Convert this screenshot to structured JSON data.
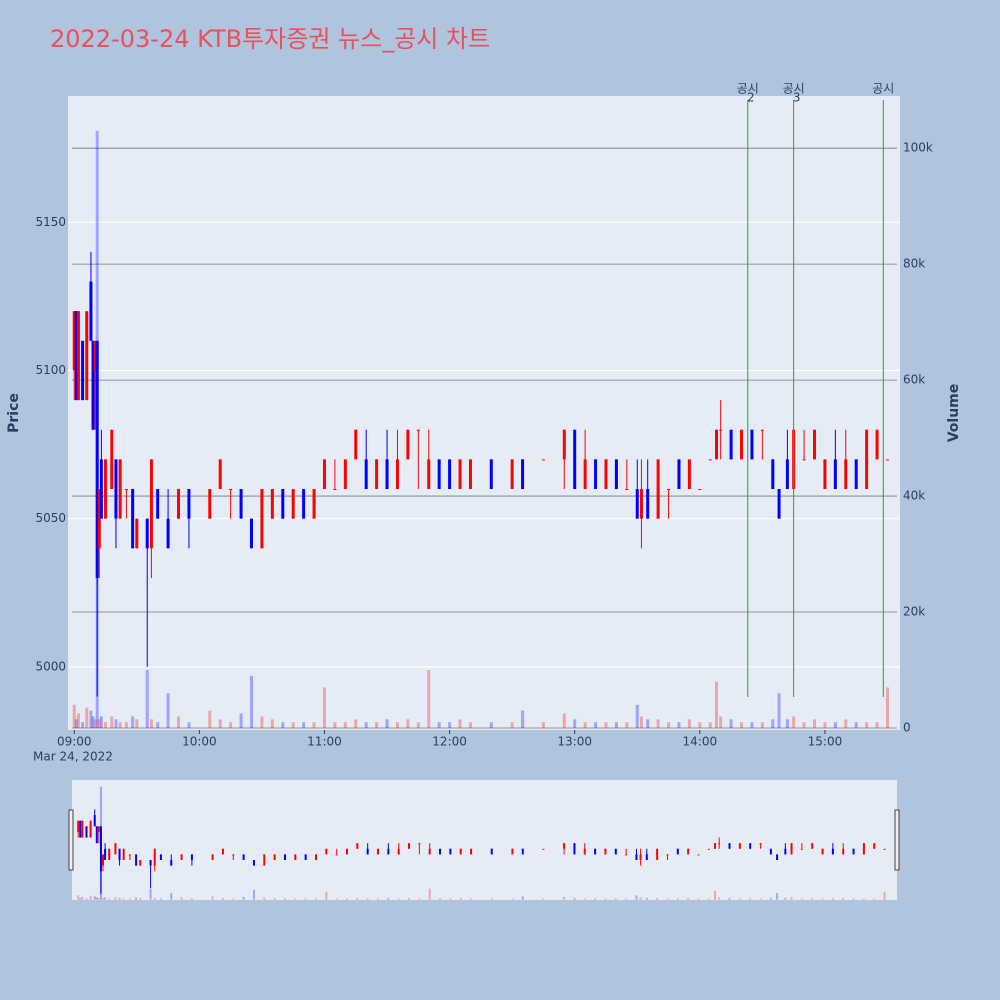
{
  "chart_data": {
    "type": "candlestick",
    "title": "2022-03-24 KTB투자증권 뉴스_공시 차트",
    "y_label": "Price",
    "y2_label": "Volume",
    "x_date_label": "Mar 24, 2022",
    "up_color": "#ff0000",
    "down_color": "#0000ff",
    "annotation_color": "#2ca02c",
    "x": [
      "09:00",
      "09:01",
      "09:02",
      "09:04",
      "09:06",
      "09:08",
      "09:09",
      "09:10",
      "09:11",
      "09:12",
      "09:13",
      "09:15",
      "09:18",
      "09:20",
      "09:22",
      "09:25",
      "09:28",
      "09:30",
      "09:35",
      "09:37",
      "09:40",
      "09:45",
      "09:50",
      "09:55",
      "10:05",
      "10:10",
      "10:15",
      "10:20",
      "10:25",
      "10:30",
      "10:35",
      "10:40",
      "10:45",
      "10:50",
      "10:55",
      "11:00",
      "11:05",
      "11:10",
      "11:15",
      "11:20",
      "11:25",
      "11:30",
      "11:35",
      "11:40",
      "11:45",
      "11:50",
      "11:55",
      "12:00",
      "12:05",
      "12:10",
      "12:20",
      "12:30",
      "12:35",
      "12:45",
      "12:55",
      "13:00",
      "13:05",
      "13:10",
      "13:15",
      "13:20",
      "13:25",
      "13:30",
      "13:32",
      "13:35",
      "13:40",
      "13:45",
      "13:50",
      "13:55",
      "14:00",
      "14:05",
      "14:08",
      "14:10",
      "14:15",
      "14:20",
      "14:25",
      "14:30",
      "14:35",
      "14:38",
      "14:42",
      "14:45",
      "14:50",
      "14:55",
      "15:00",
      "15:05",
      "15:10",
      "15:15",
      "15:20",
      "15:25",
      "15:30"
    ],
    "open": [
      5100,
      5120,
      5090,
      5110,
      5090,
      5130,
      5110,
      5100,
      5110,
      5040,
      5070,
      5050,
      5060,
      5070,
      5050,
      5060,
      5060,
      5040,
      5050,
      5040,
      5060,
      5050,
      5050,
      5060,
      5050,
      5060,
      5060,
      5060,
      5050,
      5040,
      5050,
      5060,
      5050,
      5060,
      5050,
      5060,
      5060,
      5060,
      5070,
      5070,
      5060,
      5070,
      5060,
      5070,
      5080,
      5060,
      5070,
      5070,
      5060,
      5060,
      5070,
      5060,
      5070,
      5070,
      5070,
      5080,
      5060,
      5070,
      5060,
      5070,
      5060,
      5060,
      5050,
      5060,
      5050,
      5060,
      5070,
      5060,
      5060,
      5070,
      5070,
      5080,
      5080,
      5070,
      5080,
      5080,
      5070,
      5060,
      5070,
      5060,
      5070,
      5070,
      5060,
      5070,
      5060,
      5070,
      5060,
      5070,
      5070
    ],
    "high": [
      5120,
      5120,
      5120,
      5110,
      5120,
      5140,
      5110,
      5110,
      5110,
      5060,
      5080,
      5070,
      5080,
      5070,
      5070,
      5060,
      5060,
      5050,
      5050,
      5070,
      5060,
      5060,
      5060,
      5060,
      5060,
      5070,
      5060,
      5060,
      5050,
      5060,
      5060,
      5060,
      5060,
      5060,
      5060,
      5070,
      5070,
      5070,
      5080,
      5080,
      5070,
      5080,
      5080,
      5080,
      5080,
      5080,
      5070,
      5070,
      5070,
      5070,
      5070,
      5070,
      5070,
      5070,
      5080,
      5080,
      5080,
      5070,
      5070,
      5070,
      5070,
      5070,
      5070,
      5070,
      5070,
      5060,
      5070,
      5070,
      5060,
      5070,
      5080,
      5090,
      5080,
      5080,
      5080,
      5080,
      5070,
      5060,
      5080,
      5080,
      5080,
      5080,
      5070,
      5080,
      5080,
      5070,
      5080,
      5080,
      5070
    ],
    "low": [
      5090,
      5090,
      5090,
      5090,
      5090,
      5110,
      5080,
      5080,
      4990,
      5030,
      5050,
      5050,
      5060,
      5040,
      5050,
      5050,
      5040,
      5040,
      5000,
      5030,
      5050,
      5040,
      5050,
      5040,
      5050,
      5060,
      5050,
      5050,
      5040,
      5040,
      5050,
      5050,
      5050,
      5050,
      5050,
      5060,
      5060,
      5060,
      5070,
      5060,
      5060,
      5060,
      5060,
      5070,
      5060,
      5060,
      5060,
      5060,
      5060,
      5060,
      5060,
      5060,
      5060,
      5070,
      5060,
      5060,
      5060,
      5060,
      5060,
      5060,
      5060,
      5050,
      5040,
      5050,
      5050,
      5050,
      5060,
      5060,
      5060,
      5070,
      5070,
      5070,
      5070,
      5070,
      5070,
      5070,
      5060,
      5050,
      5060,
      5060,
      5070,
      5070,
      5060,
      5060,
      5060,
      5060,
      5060,
      5070,
      5070
    ],
    "close": [
      5120,
      5090,
      5120,
      5090,
      5120,
      5110,
      5080,
      5110,
      5030,
      5060,
      5050,
      5070,
      5080,
      5050,
      5070,
      5060,
      5040,
      5050,
      5040,
      5070,
      5050,
      5040,
      5060,
      5050,
      5060,
      5070,
      5060,
      5050,
      5040,
      5060,
      5060,
      5050,
      5060,
      5050,
      5060,
      5070,
      5060,
      5070,
      5080,
      5060,
      5070,
      5060,
      5070,
      5080,
      5080,
      5070,
      5060,
      5060,
      5070,
      5070,
      5060,
      5070,
      5060,
      5070,
      5080,
      5060,
      5070,
      5060,
      5070,
      5060,
      5060,
      5050,
      5060,
      5050,
      5070,
      5060,
      5060,
      5070,
      5060,
      5070,
      5080,
      5080,
      5070,
      5080,
      5070,
      5080,
      5060,
      5050,
      5060,
      5080,
      5070,
      5080,
      5070,
      5060,
      5070,
      5060,
      5080,
      5080,
      5070
    ],
    "volume": [
      4000,
      1500,
      2500,
      1000,
      3500,
      3000,
      2000,
      1500,
      103000,
      1500,
      2000,
      1000,
      2000,
      1500,
      1000,
      1000,
      2000,
      1500,
      10000,
      1500,
      1000,
      6000,
      2000,
      1000,
      3000,
      1500,
      1000,
      2500,
      9000,
      2000,
      1500,
      1000,
      1000,
      1000,
      1000,
      7000,
      1000,
      1000,
      1500,
      1000,
      1000,
      1500,
      1000,
      1500,
      1000,
      10000,
      1000,
      1000,
      1500,
      1000,
      1000,
      1000,
      3000,
      1000,
      2500,
      1500,
      1000,
      1000,
      1000,
      1000,
      1000,
      4000,
      2000,
      1500,
      1500,
      1000,
      1000,
      1500,
      1000,
      1000,
      8000,
      2000,
      1500,
      1000,
      1000,
      1000,
      1500,
      6000,
      1500,
      2000,
      1000,
      1500,
      1000,
      1000,
      1500,
      1000,
      1000,
      1000,
      7000
    ],
    "xlim": [
      "08:57",
      "15:36"
    ],
    "xticks": [
      "09:00",
      "10:00",
      "11:00",
      "12:00",
      "13:00",
      "14:00",
      "15:00"
    ],
    "ylim": [
      4978.7,
      5192.6
    ],
    "yticks": [
      5000,
      5050,
      5100,
      5150
    ],
    "y2lim": [
      -345,
      109000
    ],
    "y2ticks": [
      0,
      {
        "value": 20000,
        "label": "20k"
      },
      {
        "value": 40000,
        "label": "40k"
      },
      {
        "value": 60000,
        "label": "60k"
      },
      {
        "value": 80000,
        "label": "80k"
      },
      {
        "value": 100000,
        "label": "100k"
      }
    ],
    "annotations": [
      {
        "x": "14:23",
        "text": "공시",
        "number": "2"
      },
      {
        "x": "14:45",
        "text": "공시",
        "number": "3"
      },
      {
        "x": "15:28",
        "text": "공시"
      }
    ]
  }
}
